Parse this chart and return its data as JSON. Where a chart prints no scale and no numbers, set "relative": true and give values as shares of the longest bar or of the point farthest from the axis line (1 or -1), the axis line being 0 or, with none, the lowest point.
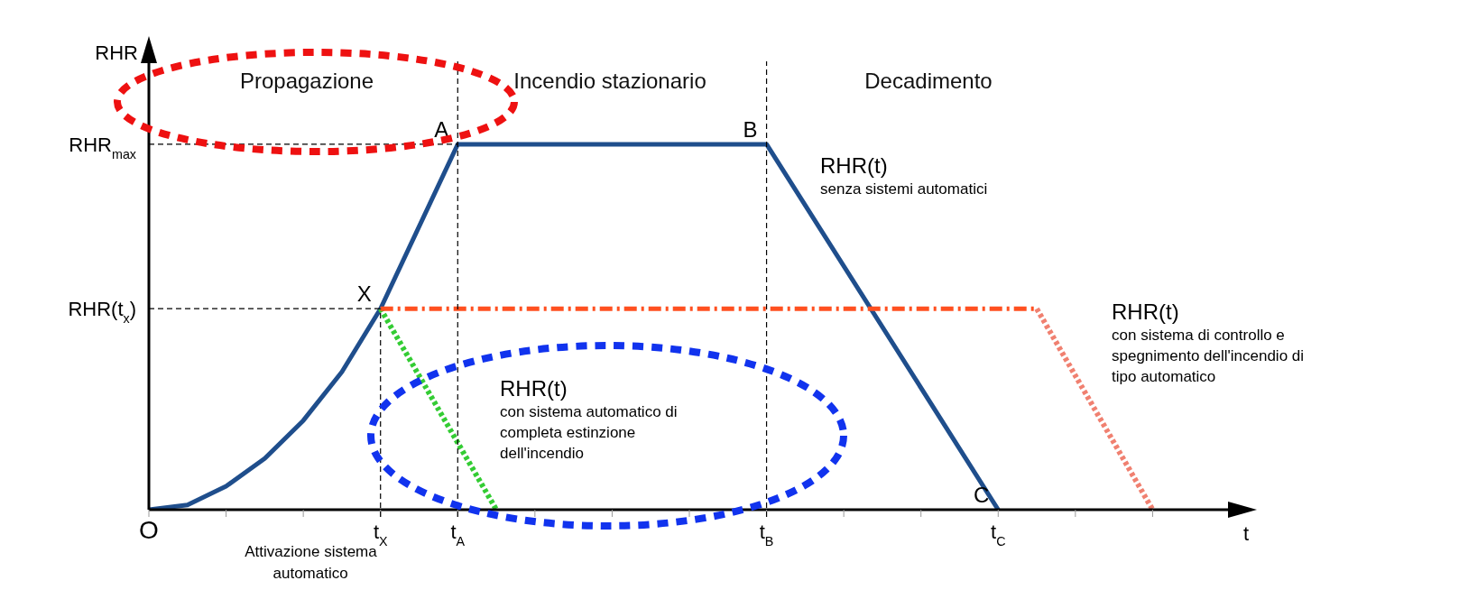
{
  "chart_data": {
    "type": "line",
    "relative": true,
    "xlabel": "t",
    "ylabel": "RHR",
    "categories": [
      "O",
      null,
      null,
      null,
      null,
      null,
      "t$_{X}$",
      null,
      "t$_{A}$",
      null,
      null,
      null,
      null,
      null,
      null,
      null,
      "t$_{B}$",
      null,
      null,
      null,
      null,
      null,
      "t$_{C}$",
      null,
      null,
      null,
      null,
      null,
      null
    ],
    "series": [
      {
        "color": "#1f4e8c",
        "line_style": "solid",
        "values": [
          0,
          0.013,
          0.064,
          0.14,
          0.244,
          0.377,
          0.55,
          null,
          1,
          null,
          null,
          null,
          null,
          null,
          null,
          null,
          1,
          null,
          null,
          null,
          null,
          null,
          0,
          null,
          null,
          null,
          null,
          null,
          null
        ]
      },
      {
        "color": "#33cc33",
        "line_style": "dotted",
        "values": [
          null,
          null,
          null,
          null,
          null,
          null,
          0.55,
          null,
          null,
          0,
          null,
          null,
          null,
          null,
          null,
          null,
          null,
          null,
          null,
          null,
          null,
          null,
          null,
          null,
          null,
          null,
          null,
          null,
          null
        ]
      },
      {
        "color": "#ff5020",
        "line_style": "dashed",
        "values": [
          null,
          null,
          null,
          null,
          null,
          null,
          0.55,
          null,
          null,
          null,
          null,
          null,
          null,
          null,
          null,
          null,
          null,
          null,
          null,
          null,
          null,
          null,
          null,
          0.55,
          null,
          null,
          null,
          null,
          null
        ]
      },
      {
        "color": "#f08070",
        "line_style": "dotted",
        "values": [
          null,
          null,
          null,
          null,
          null,
          null,
          null,
          null,
          null,
          null,
          null,
          null,
          null,
          null,
          null,
          null,
          null,
          null,
          null,
          null,
          null,
          null,
          null,
          0.55,
          null,
          null,
          0,
          null,
          null
        ]
      }
    ],
    "ref_lines": [
      {
        "axis": "y",
        "value": 1,
        "label": "RHR$_{max}$",
        "color": "#000000",
        "line_style": "dashed"
      },
      {
        "axis": "y",
        "value": 0.55,
        "label": "RHR(t$_{x}$)",
        "color": "#000000",
        "line_style": "dashed"
      },
      {
        "axis": "x",
        "value": "t$_{X}$",
        "label": "Attivazione sistema automatico",
        "color": "#000000",
        "line_style": "dashed"
      },
      {
        "axis": "x",
        "value": "t$_{A}$",
        "label": null,
        "color": "#000000",
        "line_style": "dashed"
      },
      {
        "axis": "x",
        "value": "t$_{B}$",
        "label": null,
        "color": "#000000",
        "line_style": "dashed"
      }
    ],
    "annotations": [
      {
        "text": "A",
        "x": "t$_{A}$",
        "y": 1
      },
      {
        "text": "B",
        "x": "t$_{B}$",
        "y": 1
      },
      {
        "text": "C",
        "x": "t$_{C}$",
        "y": 0
      },
      {
        "text": "X",
        "x": "t$_{X}$",
        "y": 0.55
      },
      "Propagazione",
      "Incendio stazionario",
      "Decadimento",
      "RHR(t) senza sistemi automatici",
      "RHR(t) con sistema automatico di completa estinzione dell'incendio",
      "RHR(t) con sistema di controllo e spegnimento dell'incendio di tipo automatico"
    ],
    "grid": false,
    "legend": false,
    "marker": "none"
  }
}
